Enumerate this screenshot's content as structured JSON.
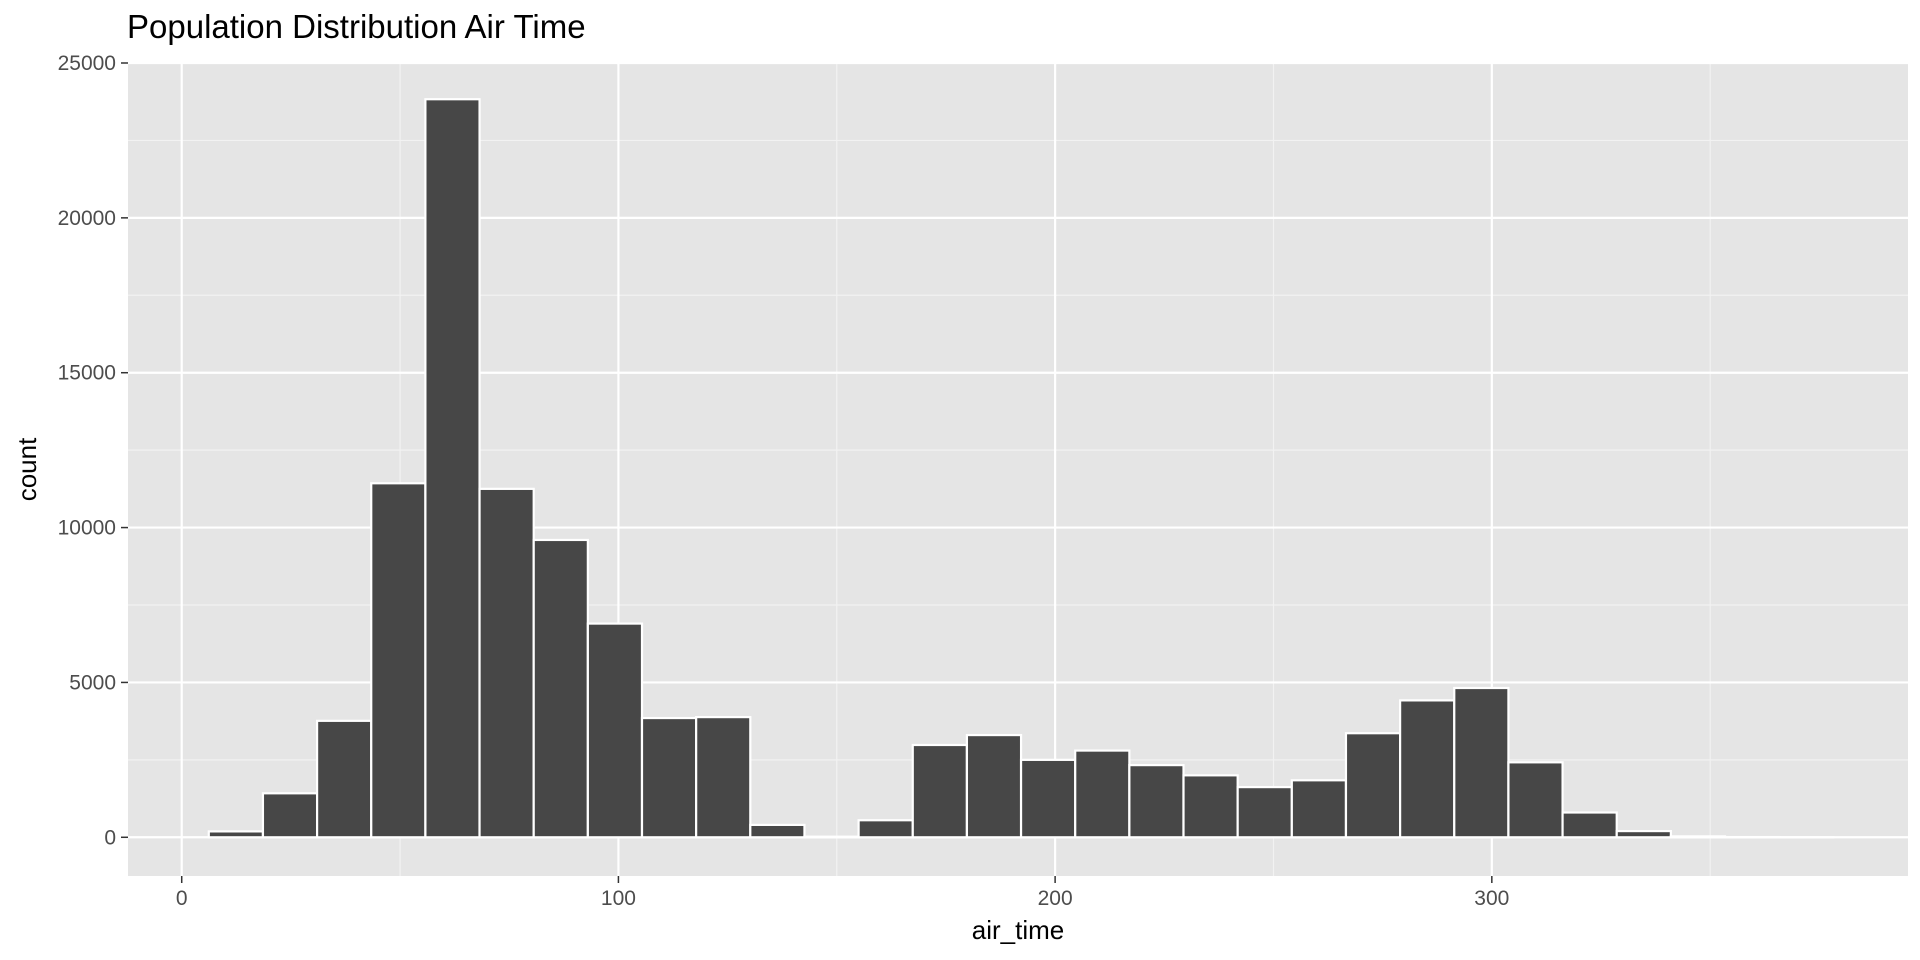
{
  "chart_data": {
    "type": "bar",
    "title": "Population Distribution Air Time",
    "xlabel": "air_time",
    "ylabel": "count",
    "xlim": [
      -12.3,
      395.3
    ],
    "ylim": [
      -1250,
      25000
    ],
    "x_ticks": [
      0,
      100,
      200,
      300
    ],
    "y_ticks": [
      0,
      5000,
      10000,
      15000,
      20000,
      25000
    ],
    "grid": true,
    "bins": [
      {
        "x_start": 6.2,
        "x_end": 18.6,
        "count": 190
      },
      {
        "x_start": 18.6,
        "x_end": 31.0,
        "count": 1420
      },
      {
        "x_start": 31.0,
        "x_end": 43.4,
        "count": 3760
      },
      {
        "x_start": 43.4,
        "x_end": 55.8,
        "count": 11430
      },
      {
        "x_start": 55.8,
        "x_end": 68.2,
        "count": 23830
      },
      {
        "x_start": 68.2,
        "x_end": 80.6,
        "count": 11250
      },
      {
        "x_start": 80.6,
        "x_end": 93.0,
        "count": 9600
      },
      {
        "x_start": 93.0,
        "x_end": 105.4,
        "count": 6900
      },
      {
        "x_start": 105.4,
        "x_end": 117.8,
        "count": 3850
      },
      {
        "x_start": 117.8,
        "x_end": 130.2,
        "count": 3880
      },
      {
        "x_start": 130.2,
        "x_end": 142.6,
        "count": 400
      },
      {
        "x_start": 142.6,
        "x_end": 155.0,
        "count": 20
      },
      {
        "x_start": 155.0,
        "x_end": 167.4,
        "count": 550
      },
      {
        "x_start": 167.4,
        "x_end": 179.8,
        "count": 2980
      },
      {
        "x_start": 179.8,
        "x_end": 192.2,
        "count": 3300
      },
      {
        "x_start": 192.2,
        "x_end": 204.6,
        "count": 2500
      },
      {
        "x_start": 204.6,
        "x_end": 217.0,
        "count": 2800
      },
      {
        "x_start": 217.0,
        "x_end": 229.4,
        "count": 2330
      },
      {
        "x_start": 229.4,
        "x_end": 241.8,
        "count": 2000
      },
      {
        "x_start": 241.8,
        "x_end": 254.2,
        "count": 1620
      },
      {
        "x_start": 254.2,
        "x_end": 266.6,
        "count": 1840
      },
      {
        "x_start": 266.6,
        "x_end": 279.0,
        "count": 3360
      },
      {
        "x_start": 279.0,
        "x_end": 291.4,
        "count": 4420
      },
      {
        "x_start": 291.4,
        "x_end": 303.8,
        "count": 4820
      },
      {
        "x_start": 303.8,
        "x_end": 316.2,
        "count": 2420
      },
      {
        "x_start": 316.2,
        "x_end": 328.6,
        "count": 800
      },
      {
        "x_start": 328.6,
        "x_end": 341.0,
        "count": 200
      },
      {
        "x_start": 341.0,
        "x_end": 353.4,
        "count": 30
      },
      {
        "x_start": 353.4,
        "x_end": 365.8,
        "count": 8
      },
      {
        "x_start": 365.8,
        "x_end": 378.2,
        "count": 3
      }
    ],
    "colors": {
      "panel_background": "#e5e5e5",
      "grid_major": "#ffffff",
      "grid_minor": "#f2f2f2",
      "bar_fill": "#474747",
      "bar_outline": "#ffffff",
      "tick_mark": "#333333"
    }
  }
}
